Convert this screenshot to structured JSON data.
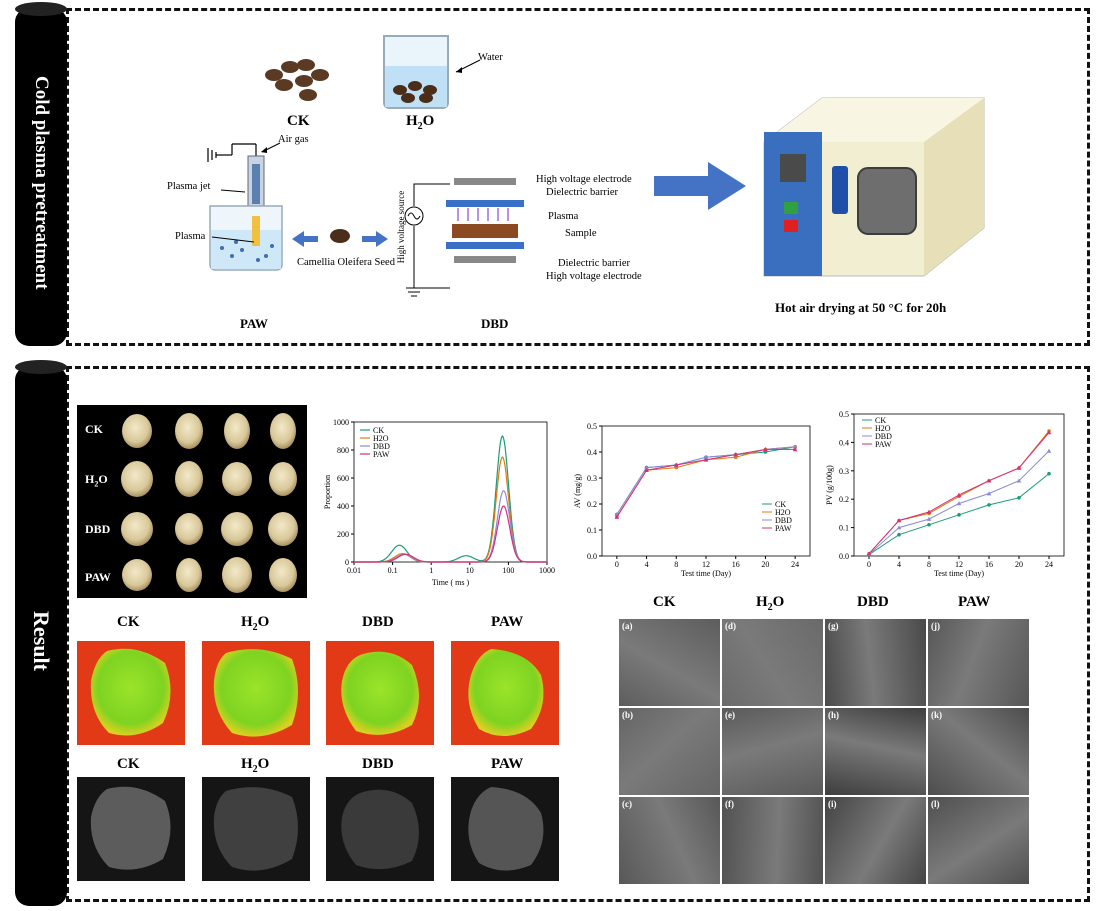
{
  "sections": {
    "top_label": "Cold plasma pretreatment",
    "bottom_label": "Result"
  },
  "schematic": {
    "ck": "CK",
    "h2o": "H",
    "h2o_sub": "2",
    "h2o_end": "O",
    "water": "Water",
    "air_gas": "Air gas",
    "plasma_jet": "Plasma jet",
    "plasma_left": "Plasma",
    "seed": "Camellia Oleifera Seed",
    "paw": "PAW",
    "dbd": "DBD",
    "hv_electrode_top": "High voltage electrode",
    "dielectric_top": "Dielectric barrier",
    "plasma_dbd": "Plasma",
    "sample": "Sample",
    "dielectric_bottom": "Dielectric barrier",
    "hv_electrode_bottom": "High voltage electrode",
    "hv_source": "High voltage source",
    "drying": "Hot air drying at 50 °C for 20h"
  },
  "seed_grid": {
    "rows": [
      "CK",
      "H",
      "DBD",
      "PAW"
    ],
    "h2o_sub": "2",
    "h2o_end": "O"
  },
  "mri_labels": [
    "CK",
    "H",
    "DBD",
    "PAW"
  ],
  "mri_h2o_sub": "2",
  "mri_h2o_end": "O",
  "sem": {
    "headers": [
      "CK",
      "H",
      "DBD",
      "PAW"
    ],
    "h2o_sub": "2",
    "h2o_end": "O",
    "panels": [
      "(a)",
      "(d)",
      "(g)",
      "(j)",
      "(b)",
      "(e)",
      "(h)",
      "(k)",
      "(c)",
      "(f)",
      "(i)",
      "(l)"
    ]
  },
  "colors": {
    "ck": "#1a9c7a",
    "h2o": "#e07a10",
    "dbd": "#8a8ad8",
    "paw": "#d62f7a",
    "arrow": "#4472c4"
  },
  "chart_data": [
    {
      "type": "line",
      "title": "",
      "xlabel": "Time ( ms )",
      "ylabel": "Proportion",
      "xscale": "log",
      "xlim": [
        0.01,
        1000
      ],
      "ylim": [
        0,
        1000
      ],
      "xticks": [
        "0.01",
        "0.1",
        "1",
        "10",
        "100",
        "1000"
      ],
      "yticks": [
        "0",
        "200",
        "400",
        "600",
        "800",
        "1000"
      ],
      "legend": [
        "CK",
        "H2O",
        "DBD",
        "PAW"
      ],
      "legend_placement": "top-left",
      "series": [
        {
          "name": "CK",
          "peaks": [
            [
              0.15,
              120
            ],
            [
              8,
              45
            ],
            [
              70,
              900
            ]
          ]
        },
        {
          "name": "H2O",
          "peaks": [
            [
              0.18,
              60
            ],
            [
              70,
              750
            ]
          ]
        },
        {
          "name": "DBD",
          "peaks": [
            [
              0.2,
              55
            ],
            [
              75,
              510
            ]
          ]
        },
        {
          "name": "PAW",
          "peaks": [
            [
              0.22,
              55
            ],
            [
              75,
              400
            ]
          ]
        }
      ]
    },
    {
      "type": "line",
      "xlabel": "Test time (Day)",
      "ylabel": "AV (mg/g)",
      "x": [
        0,
        4,
        8,
        12,
        16,
        20,
        24
      ],
      "ylim": [
        0,
        0.5
      ],
      "yticks": [
        "0.0",
        "0.1",
        "0.2",
        "0.3",
        "0.4",
        "0.5"
      ],
      "legend": [
        "CK",
        "H2O",
        "DBD",
        "PAW"
      ],
      "legend_placement": "bottom-right",
      "series": [
        {
          "name": "CK",
          "values": [
            0.16,
            0.34,
            0.35,
            0.38,
            0.39,
            0.4,
            0.42
          ]
        },
        {
          "name": "H2O",
          "values": [
            0.15,
            0.33,
            0.34,
            0.37,
            0.38,
            0.41,
            0.42
          ]
        },
        {
          "name": "DBD",
          "values": [
            0.16,
            0.34,
            0.35,
            0.38,
            0.39,
            0.41,
            0.42
          ]
        },
        {
          "name": "PAW",
          "values": [
            0.15,
            0.33,
            0.35,
            0.37,
            0.39,
            0.41,
            0.41
          ]
        }
      ]
    },
    {
      "type": "line",
      "xlabel": "Test time (Day)",
      "ylabel": "PV (g/100g)",
      "x": [
        0,
        4,
        8,
        12,
        16,
        20,
        24
      ],
      "ylim": [
        0,
        0.5
      ],
      "yticks": [
        "0.0",
        "0.1",
        "0.2",
        "0.3",
        "0.4",
        "0.5"
      ],
      "legend": [
        "CK",
        "H2O",
        "DBD",
        "PAW"
      ],
      "legend_placement": "top-left",
      "series": [
        {
          "name": "CK",
          "values": [
            0.005,
            0.075,
            0.11,
            0.145,
            0.18,
            0.205,
            0.29
          ]
        },
        {
          "name": "H2O",
          "values": [
            0.008,
            0.125,
            0.15,
            0.21,
            0.265,
            0.31,
            0.44
          ]
        },
        {
          "name": "DBD",
          "values": [
            0.006,
            0.1,
            0.13,
            0.185,
            0.22,
            0.265,
            0.37
          ]
        },
        {
          "name": "PAW",
          "values": [
            0.008,
            0.125,
            0.155,
            0.215,
            0.265,
            0.31,
            0.435
          ]
        }
      ]
    }
  ]
}
